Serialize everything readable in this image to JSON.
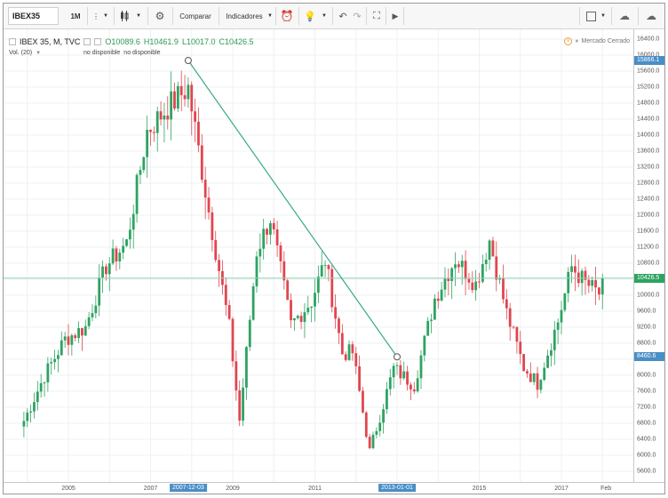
{
  "toolbar": {
    "symbol": "IBEX35",
    "interval": "1M",
    "compare_label": "Comparar",
    "indicators_label": "Indicadores"
  },
  "legend": {
    "title": "IBEX 35, M, TVC",
    "open": "O10089.6",
    "high": "H10461.9",
    "low": "L10017.0",
    "close": "C10426.5",
    "volume_label": "Vol. (20)",
    "volume_value_1": "no disponible",
    "volume_value_2": "no disponible",
    "market_status": "Mercado Cerrado"
  },
  "price_axis": {
    "labels": [
      "16400.0",
      "16000.0",
      "15600.0",
      "15200.0",
      "14800.0",
      "14400.0",
      "14000.0",
      "13600.0",
      "13200.0",
      "12800.0",
      "12400.0",
      "12000.0",
      "11600.0",
      "11200.0",
      "10800.0",
      "10000.0",
      "9600.0",
      "9200.0",
      "8800.0",
      "8000.0",
      "7600.0",
      "7200.0",
      "6800.0",
      "6400.0",
      "6000.0",
      "5600.0"
    ],
    "badge_high": "15866.1",
    "badge_current": "10426.5",
    "badge_low": "8460.6"
  },
  "time_axis": {
    "labels": [
      "2005",
      "2007",
      "2009",
      "2011",
      "2015",
      "2017",
      "Feb"
    ],
    "badge_start": "2007-12-03",
    "badge_end": "2013-01-01"
  },
  "colors": {
    "up": "#2ea361",
    "down": "#e0464f",
    "trendline": "#3aa889",
    "badge": "#4a8ec6",
    "current_line": "#8fd3b6"
  },
  "chart_data": {
    "type": "candlestick",
    "symbol": "IBEX 35",
    "interval": "M",
    "ylim": [
      5300,
      16600
    ],
    "trendline": {
      "from": {
        "date": "2007-12-03",
        "price": 15866.1
      },
      "to": {
        "date": "2013-01-01",
        "price": 8460.6
      }
    },
    "current_price": 10426.5,
    "anchors": [
      {
        "date": "2003-12",
        "price": 6860
      },
      {
        "date": "2004-06",
        "price": 7990
      },
      {
        "date": "2004-12",
        "price": 8900
      },
      {
        "date": "2005-06",
        "price": 9200
      },
      {
        "date": "2005-12",
        "price": 10730
      },
      {
        "date": "2006-06",
        "price": 11300
      },
      {
        "date": "2006-12",
        "price": 14100
      },
      {
        "date": "2007-06",
        "price": 14700
      },
      {
        "date": "2007-12",
        "price": 15180
      },
      {
        "date": "2008-06",
        "price": 12100
      },
      {
        "date": "2008-12",
        "price": 9200
      },
      {
        "date": "2009-03",
        "price": 6870
      },
      {
        "date": "2009-08",
        "price": 11100
      },
      {
        "date": "2009-12",
        "price": 11940
      },
      {
        "date": "2010-06",
        "price": 9260
      },
      {
        "date": "2010-12",
        "price": 9860
      },
      {
        "date": "2011-04",
        "price": 10880
      },
      {
        "date": "2011-09",
        "price": 8550
      },
      {
        "date": "2011-12",
        "price": 8570
      },
      {
        "date": "2012-05",
        "price": 6090
      },
      {
        "date": "2012-12",
        "price": 8170
      },
      {
        "date": "2013-06",
        "price": 7760
      },
      {
        "date": "2013-12",
        "price": 9920
      },
      {
        "date": "2014-06",
        "price": 10920
      },
      {
        "date": "2014-12",
        "price": 10280
      },
      {
        "date": "2015-04",
        "price": 11380
      },
      {
        "date": "2015-09",
        "price": 9560
      },
      {
        "date": "2016-02",
        "price": 8200
      },
      {
        "date": "2016-06",
        "price": 7800
      },
      {
        "date": "2016-12",
        "price": 9350
      },
      {
        "date": "2017-04",
        "price": 10710
      },
      {
        "date": "2017-08",
        "price": 10300
      },
      {
        "date": "2017-12",
        "price": 10040
      },
      {
        "date": "2018-01",
        "price": 10426.5
      }
    ]
  }
}
